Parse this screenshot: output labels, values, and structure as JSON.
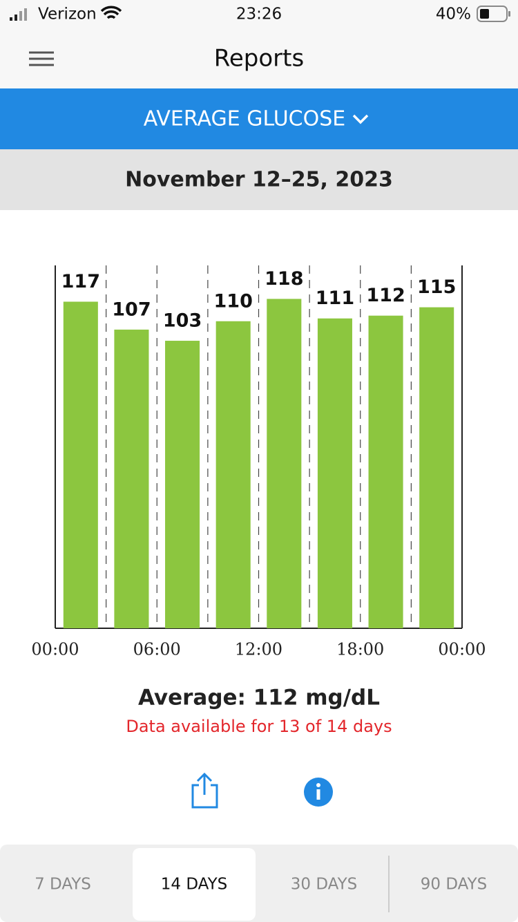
{
  "status_bar": {
    "carrier": "Verizon",
    "time": "23:26",
    "battery": "40%"
  },
  "header": {
    "title": "Reports"
  },
  "selector": {
    "label": "AVERAGE GLUCOSE"
  },
  "date_range": "November 12–25, 2023",
  "chart_data": {
    "type": "histogram",
    "color": "#8cc63f",
    "bins": [
      0,
      3,
      6,
      9,
      12,
      15,
      18,
      21,
      24
    ],
    "values": [
      117,
      107,
      103,
      110,
      118,
      111,
      112,
      115
    ],
    "xlim": [
      0,
      24
    ],
    "xticks": [
      {
        "value": 0,
        "label": "00:00"
      },
      {
        "value": 6,
        "label": "06:00"
      },
      {
        "value": 12,
        "label": "12:00"
      },
      {
        "value": 18,
        "label": "18:00"
      },
      {
        "value": 24,
        "label": "00:00"
      }
    ],
    "ylim": [
      0,
      130
    ],
    "grid": true
  },
  "summary": {
    "average": "Average: 112 mg/dL",
    "availability": "Data available for 13 of 14 days"
  },
  "tabs": [
    "7 DAYS",
    "14 DAYS",
    "30 DAYS",
    "90 DAYS"
  ]
}
